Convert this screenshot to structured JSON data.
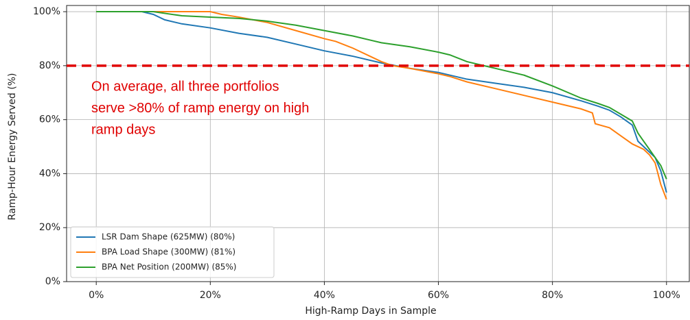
{
  "chart_data": {
    "type": "line",
    "x_label": "High-Ramp Days in Sample",
    "y_label": "Ramp-Hour Energy Served (%)",
    "annotation": {
      "lines": [
        "On average, all three portfolios",
        "serve >80% of ramp energy on high",
        "ramp days"
      ],
      "color": "#e00000"
    },
    "hline": {
      "value": 80,
      "color": "#e00000"
    },
    "xlim": [
      -5.2,
      104
    ],
    "ylim": [
      0,
      102.3
    ],
    "xticks": [
      {
        "value": 0,
        "label": "0%"
      },
      {
        "value": 20,
        "label": "20%"
      },
      {
        "value": 40,
        "label": "40%"
      },
      {
        "value": 60,
        "label": "60%"
      },
      {
        "value": 80,
        "label": "80%"
      },
      {
        "value": 100,
        "label": "100%"
      }
    ],
    "yticks": [
      {
        "value": 0,
        "label": "0%"
      },
      {
        "value": 20,
        "label": "20%"
      },
      {
        "value": 40,
        "label": "40%"
      },
      {
        "value": 60,
        "label": "60%"
      },
      {
        "value": 80,
        "label": "80%"
      },
      {
        "value": 100,
        "label": "100%"
      }
    ],
    "grid": true,
    "legend": "lower left",
    "series": [
      {
        "name": "LSR Dam Shape (625MW) (80%)",
        "color": "#1f77b4",
        "x": [
          0,
          5,
          8,
          10,
          12,
          15,
          20,
          25,
          30,
          35,
          40,
          45,
          50,
          55,
          60,
          65,
          70,
          75,
          80,
          85,
          88,
          90,
          92,
          94,
          95,
          97,
          98,
          99,
          100
        ],
        "values": [
          100,
          100,
          100,
          99,
          97,
          95.5,
          94,
          92,
          90.5,
          88,
          85.5,
          83.5,
          81,
          79,
          77.5,
          75,
          73.5,
          72,
          70,
          67,
          65,
          63.5,
          61,
          58,
          52,
          48,
          46,
          41,
          33
        ]
      },
      {
        "name": "BPA Load Shape (300MW) (81%)",
        "color": "#ff7f0e",
        "x": [
          0,
          10,
          20,
          22,
          25,
          30,
          35,
          40,
          42,
          45,
          48,
          50,
          52,
          55,
          60,
          62,
          65,
          70,
          75,
          80,
          85,
          87,
          87.5,
          90,
          92,
          94,
          96,
          97,
          98,
          99,
          100
        ],
        "values": [
          100,
          100,
          100,
          99,
          98,
          96,
          93,
          90,
          89,
          86.5,
          83.5,
          81.5,
          80,
          79,
          77,
          76,
          74,
          71.5,
          69,
          66.5,
          64,
          62.5,
          58.5,
          57,
          54,
          51,
          49,
          47,
          44,
          36,
          30.5
        ]
      },
      {
        "name": "BPA Net Position (200MW) (85%)",
        "color": "#2ca02c",
        "x": [
          0,
          10,
          15,
          20,
          25,
          30,
          35,
          40,
          45,
          48,
          50,
          55,
          60,
          62,
          65,
          68,
          70,
          75,
          80,
          85,
          88,
          90,
          92,
          94,
          95,
          96,
          97,
          98,
          99,
          100
        ],
        "values": [
          100,
          100,
          98.5,
          98,
          97.5,
          96.5,
          95,
          93,
          91,
          89.5,
          88.5,
          87,
          85,
          84,
          81.5,
          80,
          79,
          76.5,
          72.5,
          68,
          66,
          64.5,
          62,
          59.5,
          55,
          52,
          49,
          46,
          43,
          38
        ]
      }
    ]
  }
}
